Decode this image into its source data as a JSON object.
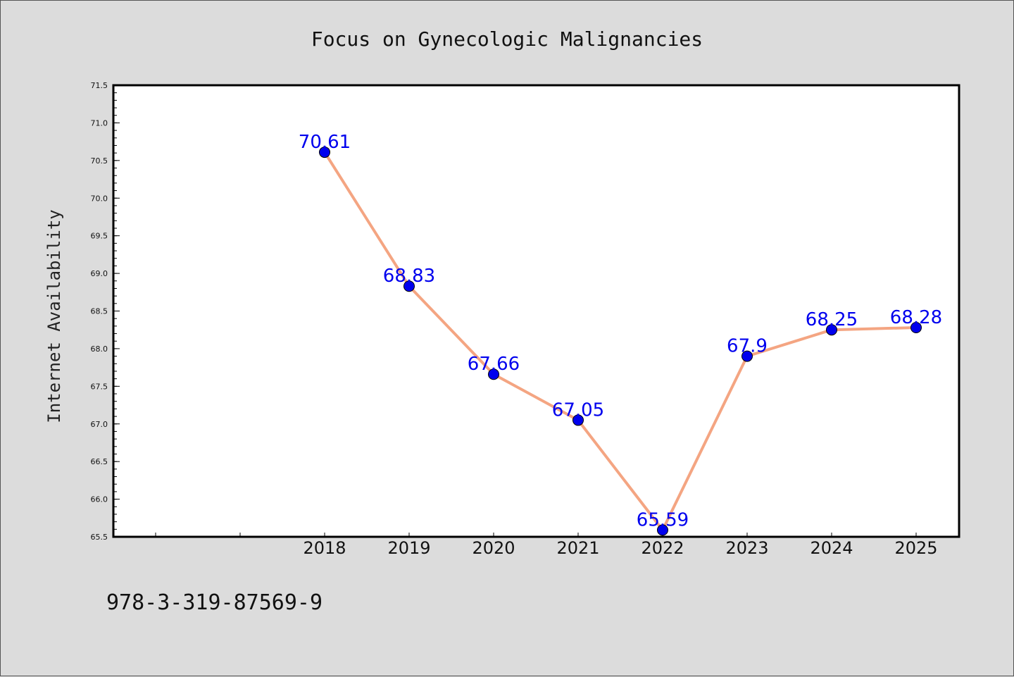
{
  "chart_data": {
    "type": "line",
    "title": "Focus on Gynecologic Malignancies",
    "xlabel": "",
    "ylabel": "Internet Availability",
    "categories": [
      "2018",
      "2019",
      "2020",
      "2021",
      "2022",
      "2023",
      "2024",
      "2025"
    ],
    "series": [
      {
        "values": [
          70.61,
          68.83,
          67.66,
          67.05,
          65.59,
          67.9,
          68.25,
          68.28
        ]
      }
    ],
    "data_labels": [
      "70.61",
      "68.83",
      "67.66",
      "67.05",
      "65.59",
      "67.9",
      "68.25",
      "68.28"
    ],
    "ylim": [
      65.5,
      71.5
    ],
    "yticks": [
      "65.5",
      "66.0",
      "66.5",
      "67.0",
      "67.5",
      "68.0",
      "68.5",
      "69.0",
      "69.5",
      "70.0",
      "70.5",
      "71.0",
      "71.5"
    ],
    "grid": false,
    "line_color": "#f4a582",
    "marker_color": "#0000ee",
    "label_color": "#0000ee"
  },
  "footer_text": "978-3-319-87569-9"
}
